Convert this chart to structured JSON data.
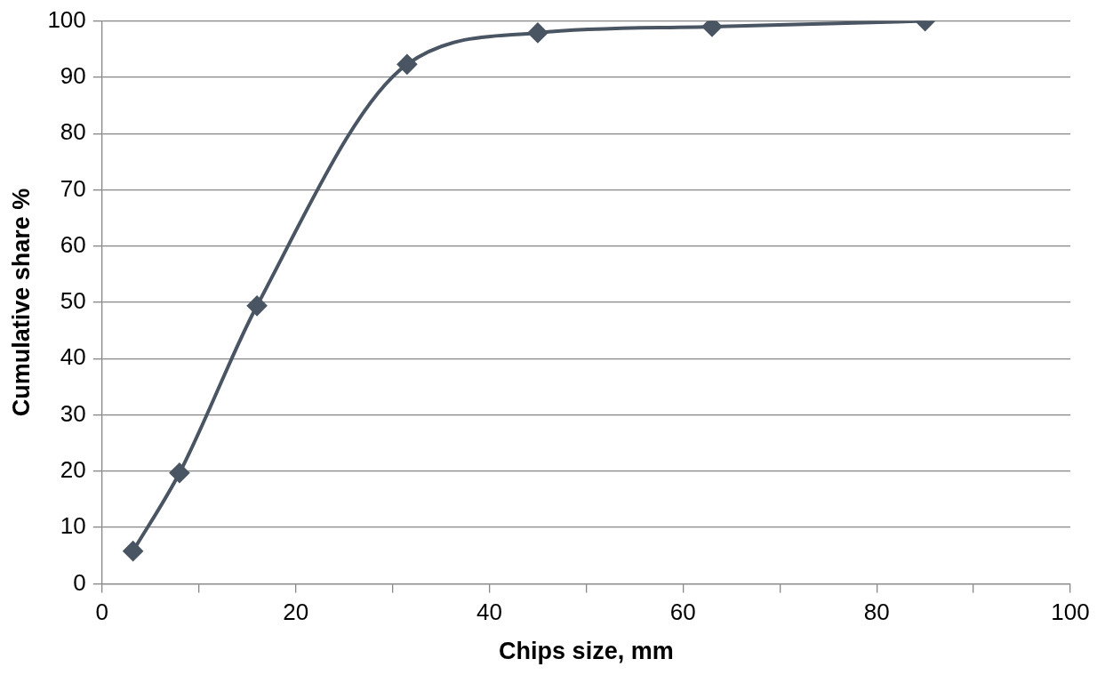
{
  "chart_data": {
    "type": "line",
    "xlabel": "Chips size, mm",
    "ylabel": "Cumulative share %",
    "x": [
      3.2,
      8,
      16,
      31.5,
      45,
      63,
      85
    ],
    "series": [
      {
        "color": "#4a5563",
        "values": [
          5.8,
          19.7,
          49.4,
          92.3,
          97.9,
          99,
          100
        ]
      }
    ],
    "xlim": [
      0,
      100
    ],
    "xticks": [
      0,
      {
        "value": 10,
        "label": null
      },
      20,
      {
        "value": 30,
        "label": null
      },
      40,
      {
        "value": 50,
        "label": null
      },
      60,
      {
        "value": 70,
        "label": null
      },
      80,
      {
        "value": 90,
        "label": null
      },
      100
    ],
    "ylim": [
      0,
      100
    ],
    "yticks": [
      0,
      10,
      20,
      30,
      40,
      50,
      60,
      70,
      80,
      90,
      100
    ],
    "grid": "y",
    "marker": "diamond",
    "line_style": "solid"
  }
}
